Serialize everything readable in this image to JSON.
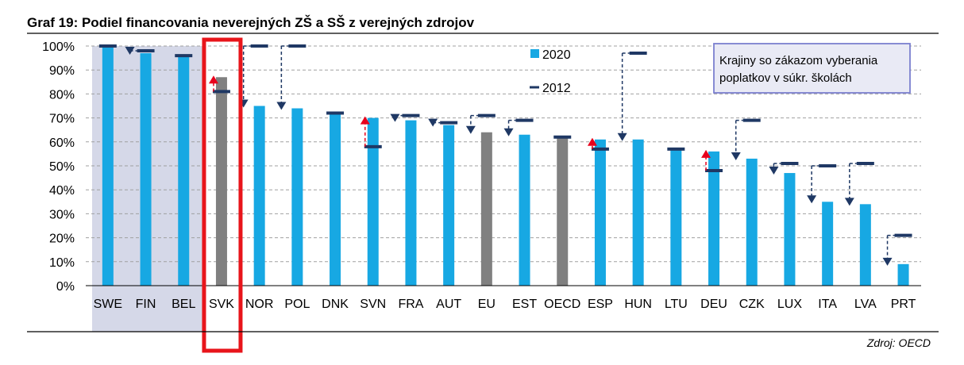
{
  "chart_data": {
    "type": "bar",
    "title": "Graf 19: Podiel financovania neverejných ZŠ a SŠ z verejných zdrojov",
    "categories": [
      "SWE",
      "FIN",
      "BEL",
      "SVK",
      "NOR",
      "POL",
      "DNK",
      "SVN",
      "FRA",
      "AUT",
      "EU",
      "EST",
      "OECD",
      "ESP",
      "HUN",
      "LTU",
      "DEU",
      "CZK",
      "LUX",
      "ITA",
      "LVA",
      "PRT"
    ],
    "series": [
      {
        "name": "2020",
        "type": "bar",
        "values": [
          100,
          97,
          96,
          87,
          75,
          74,
          72,
          70,
          69,
          67,
          64,
          63,
          62,
          61,
          61,
          57,
          56,
          53,
          47,
          35,
          34,
          9
        ]
      },
      {
        "name": "2012",
        "type": "marker",
        "values": [
          100,
          98,
          96,
          81,
          100,
          100,
          72,
          58,
          71,
          68,
          71,
          69,
          62,
          57,
          97,
          57,
          48,
          69,
          51,
          50,
          51,
          21
        ]
      }
    ],
    "highlight_gray": [
      "SVK",
      "EU",
      "OECD"
    ],
    "shaded_group": [
      "SWE",
      "FIN",
      "BEL"
    ],
    "boxed_category": "SVK",
    "y_ticks": [
      "0%",
      "10%",
      "20%",
      "30%",
      "40%",
      "50%",
      "60%",
      "70%",
      "80%",
      "90%",
      "100%"
    ],
    "ylim": [
      0,
      100
    ],
    "xlabel": "",
    "ylabel": "",
    "grid": true,
    "legend": {
      "position": "top-center",
      "entries": [
        "2020",
        "2012"
      ]
    },
    "annotation": [
      "Krajiny so zákazom vyberania",
      "poplatkov v súkr. školách"
    ],
    "source": "Zdroj: OECD",
    "colors": {
      "bar": "#17a8e3",
      "bar_gray": "#808080",
      "marker": "#1f3864",
      "up_arrow": "#e8001c",
      "down_arrow": "#1f3864",
      "shade": "#d5d8e8",
      "box": "#e8151b",
      "grid": "#a0a0a0",
      "note_border": "#7b7fcf",
      "note_fill": "#e9eaf5"
    }
  }
}
